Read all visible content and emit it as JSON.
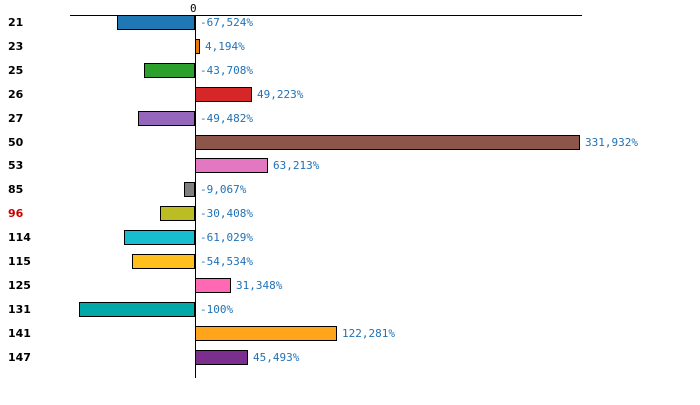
{
  "chart_data": {
    "type": "bar",
    "orientation": "horizontal",
    "title": "",
    "xlabel": "",
    "ylabel": "",
    "zero_label": "0",
    "xlim": [
      -108,
      334
    ],
    "grid": false,
    "legend": "none",
    "categories": [
      "21",
      "23",
      "25",
      "26",
      "27",
      "50",
      "53",
      "85",
      "96",
      "114",
      "115",
      "125",
      "131",
      "141",
      "147"
    ],
    "values": [
      -67.524,
      4.194,
      -43.708,
      49.223,
      -49.482,
      331.932,
      63.213,
      -9.067,
      -30.408,
      -61.029,
      -54.534,
      31.348,
      -100,
      122.281,
      45.493
    ],
    "value_labels": [
      "-67,524%",
      "4,194%",
      "-43,708%",
      "49,223%",
      "-49,482%",
      "331,932%",
      "63,213%",
      "-9,067%",
      "-30,408%",
      "-61,029%",
      "-54,534%",
      "31,348%",
      "-100%",
      "122,281%",
      "45,493%"
    ],
    "bar_colors": [
      "#1f77b4",
      "#e8790f",
      "#2ca02c",
      "#d62728",
      "#9467bd",
      "#8c564b",
      "#e377c2",
      "#7f7f7f",
      "#bcbd22",
      "#17becf",
      "#ffc01e",
      "#ff69b4",
      "#00a8a8",
      "#ffa41b",
      "#7a2e8d"
    ],
    "category_colors": [
      "#000000",
      "#000000",
      "#000000",
      "#000000",
      "#000000",
      "#000000",
      "#000000",
      "#000000",
      "#cc0000",
      "#000000",
      "#000000",
      "#000000",
      "#000000",
      "#000000",
      "#000000"
    ],
    "value_label_color": "#2171b5",
    "axis_color": "#000000",
    "highlighted_category": "96"
  }
}
